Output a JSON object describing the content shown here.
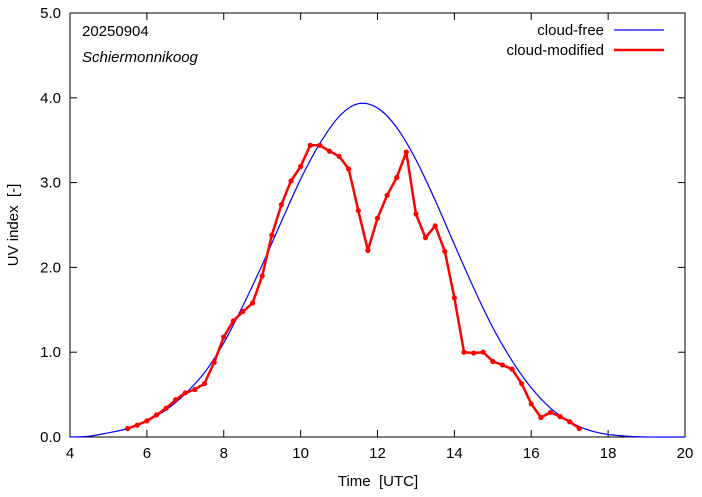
{
  "chart_data": {
    "type": "line",
    "date_label": "20250904",
    "location_label": "Schiermonnikoog",
    "xlabel": "Time  [UTC]",
    "ylabel": "UV index  [-]",
    "xlim": [
      4,
      20
    ],
    "ylim": [
      0,
      5
    ],
    "xticks": [
      4,
      6,
      8,
      10,
      12,
      14,
      16,
      18,
      20
    ],
    "yticks": [
      0,
      1,
      2,
      3,
      4,
      5
    ],
    "ytick_labels": [
      "0.0",
      "1.0",
      "2.0",
      "3.0",
      "4.0",
      "5.0"
    ],
    "grid": false,
    "legend_position": "top-right",
    "series": [
      {
        "name": "cloud-free",
        "color": "#0000ff",
        "markers": false,
        "x": [
          4.0,
          4.5,
          5.0,
          5.5,
          6.0,
          6.5,
          7.0,
          7.5,
          8.0,
          8.5,
          9.0,
          9.5,
          10.0,
          10.5,
          11.0,
          11.5,
          12.0,
          12.5,
          13.0,
          13.5,
          14.0,
          14.5,
          15.0,
          15.5,
          16.0,
          16.5,
          17.0,
          17.5,
          18.0,
          18.5,
          19.0,
          19.5,
          20.0
        ],
        "values": [
          0.0,
          0.01,
          0.05,
          0.1,
          0.19,
          0.32,
          0.51,
          0.76,
          1.11,
          1.55,
          2.03,
          2.54,
          3.04,
          3.46,
          3.78,
          3.93,
          3.88,
          3.65,
          3.27,
          2.79,
          2.27,
          1.76,
          1.29,
          0.9,
          0.58,
          0.34,
          0.18,
          0.08,
          0.03,
          0.01,
          0.0,
          0.0,
          0.0
        ]
      },
      {
        "name": "cloud-modified",
        "color": "#ff0000",
        "markers": true,
        "x": [
          5.5,
          5.75,
          6.0,
          6.25,
          6.5,
          6.75,
          7.0,
          7.25,
          7.5,
          7.75,
          8.0,
          8.25,
          8.5,
          8.75,
          9.0,
          9.25,
          9.5,
          9.75,
          10.0,
          10.25,
          10.5,
          10.75,
          11.0,
          11.25,
          11.5,
          11.75,
          12.0,
          12.25,
          12.5,
          12.75,
          13.0,
          13.25,
          13.5,
          13.75,
          14.0,
          14.25,
          14.5,
          14.75,
          15.0,
          15.25,
          15.5,
          15.75,
          16.0,
          16.25,
          16.5,
          16.75,
          17.0,
          17.25
        ],
        "values": [
          0.1,
          0.14,
          0.19,
          0.26,
          0.34,
          0.44,
          0.52,
          0.56,
          0.63,
          0.88,
          1.18,
          1.37,
          1.48,
          1.58,
          1.9,
          2.38,
          2.74,
          3.02,
          3.19,
          3.44,
          3.44,
          3.37,
          3.31,
          3.16,
          2.67,
          2.2,
          2.58,
          2.85,
          3.06,
          3.36,
          2.63,
          2.35,
          2.49,
          2.19,
          1.64,
          1.0,
          0.99,
          1.0,
          0.89,
          0.85,
          0.8,
          0.63,
          0.39,
          0.23,
          0.29,
          0.24,
          0.18,
          0.1
        ]
      }
    ]
  }
}
